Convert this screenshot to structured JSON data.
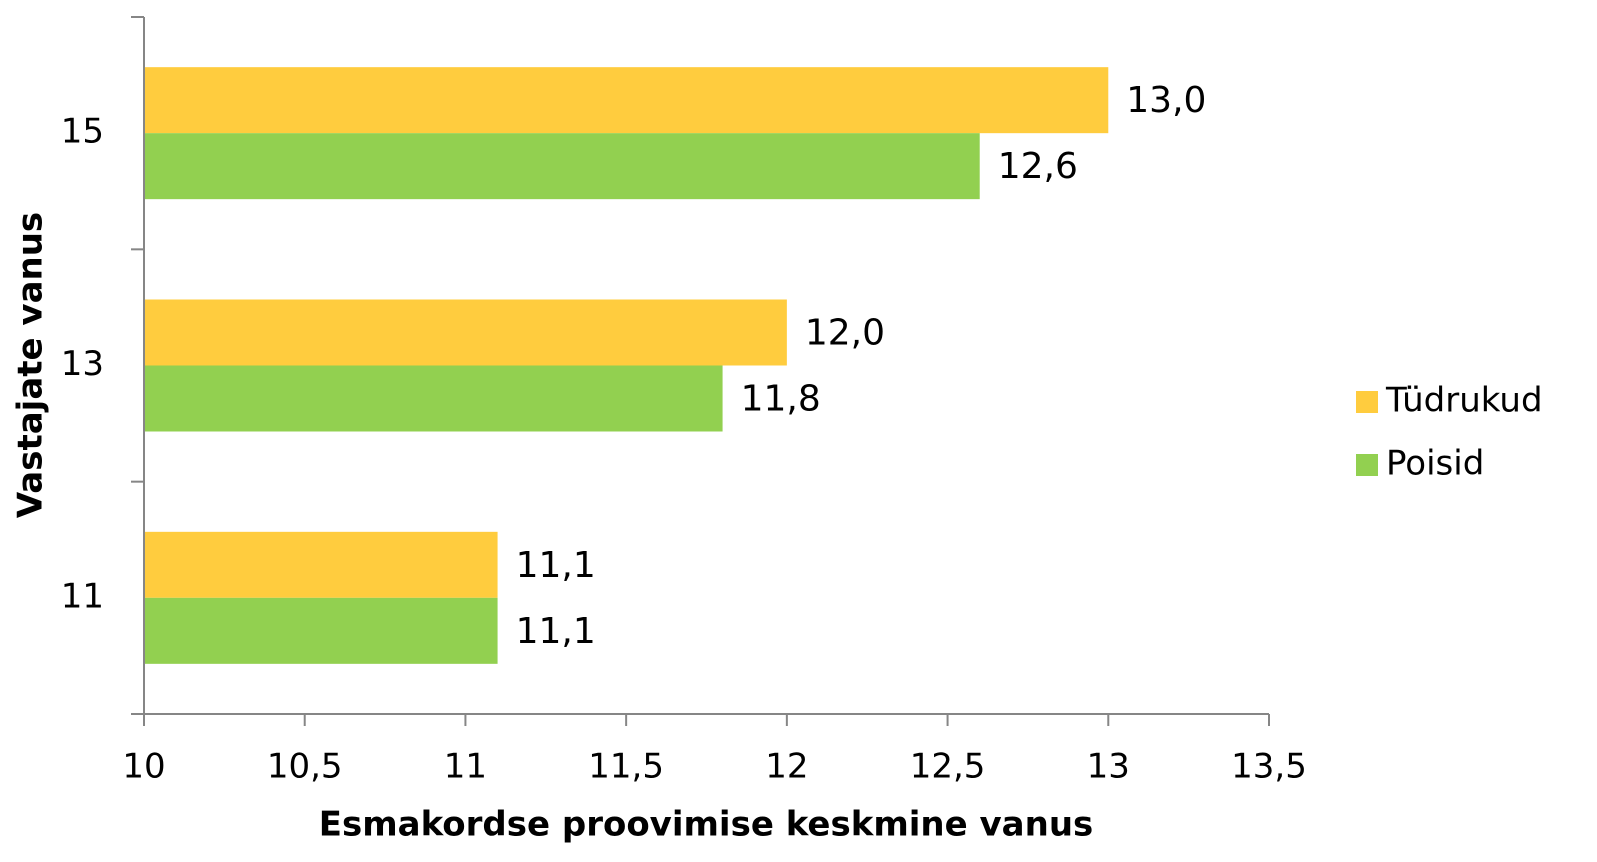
{
  "chart_data": {
    "type": "barh",
    "xlabel": "Esmakordse proovimise keskmine vanus",
    "ylabel": "Vastajate vanus",
    "categories": [
      "11",
      "13",
      "15"
    ],
    "series": [
      {
        "name": "Tüdrukud",
        "color": "#FFCC3E",
        "values": [
          11.1,
          12.0,
          13.0
        ],
        "value_labels": [
          "11,1",
          "12,0",
          "13,0"
        ]
      },
      {
        "name": "Poisid",
        "color": "#92D050",
        "values": [
          11.1,
          11.8,
          12.6
        ],
        "value_labels": [
          "11,1",
          "11,8",
          "12,6"
        ]
      }
    ],
    "xlim": [
      10,
      13.5
    ],
    "xticks": [
      10,
      {
        "value": 10.5,
        "label": "10,5"
      },
      11,
      {
        "value": 11.5,
        "label": "11,5"
      },
      12,
      {
        "value": 12.5,
        "label": "12,5"
      },
      13,
      {
        "value": 13.5,
        "label": "13,5"
      }
    ],
    "legend": "right"
  }
}
